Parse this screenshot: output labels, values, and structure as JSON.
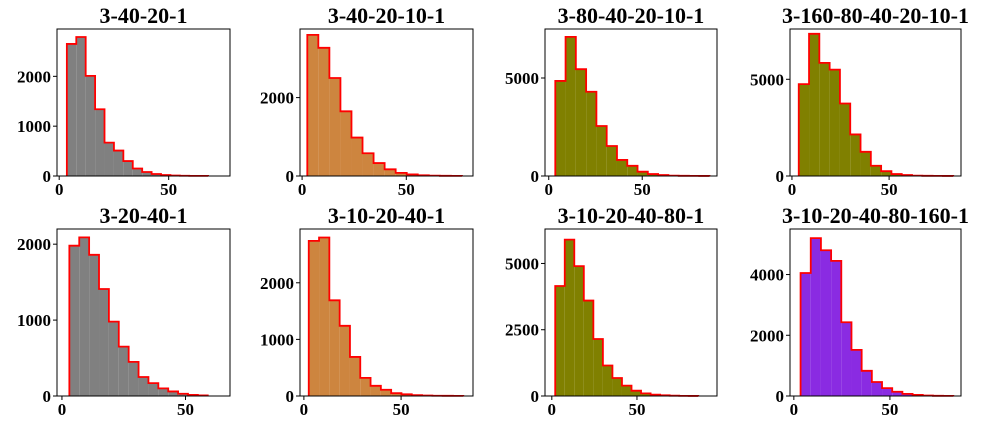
{
  "chart_data": [
    {
      "type": "bar",
      "title": "3-40-20-1",
      "fill": "#808080",
      "edge": "#ff0000",
      "x_start": 3.5,
      "bin_width": 4.3,
      "xlim": [
        -1,
        78
      ],
      "ylim": [
        0,
        2950
      ],
      "xticks": [
        0,
        50
      ],
      "yticks": [
        0,
        1000,
        2000
      ],
      "values": [
        2650,
        2790,
        2010,
        1340,
        670,
        510,
        300,
        150,
        80,
        40,
        20,
        10,
        5,
        3,
        2
      ]
    },
    {
      "type": "bar",
      "title": "3-40-20-10-1",
      "fill": "#cd853f",
      "edge": "#ff0000",
      "x_start": 2.5,
      "bin_width": 5.3,
      "xlim": [
        -1,
        82
      ],
      "ylim": [
        0,
        3750
      ],
      "xticks": [
        0,
        50
      ],
      "yticks": [
        0,
        2000
      ],
      "values": [
        3600,
        3270,
        2500,
        1650,
        980,
        580,
        330,
        170,
        80,
        40,
        20,
        10,
        5,
        3
      ]
    },
    {
      "type": "bar",
      "title": "3-80-40-20-10-1",
      "fill": "#808000",
      "edge": "#ff0000",
      "x_start": 3.5,
      "bin_width": 5.5,
      "xlim": [
        -2,
        90
      ],
      "ylim": [
        0,
        7500
      ],
      "xticks": [
        0,
        50
      ],
      "yticks": [
        0,
        5000
      ],
      "values": [
        4850,
        7100,
        5450,
        4300,
        2550,
        1530,
        820,
        520,
        220,
        100,
        50,
        20,
        10,
        5,
        3
      ]
    },
    {
      "type": "bar",
      "title": "3-160-80-40-20-10-1",
      "fill": "#808000",
      "edge": "#ff0000",
      "x_start": 3.5,
      "bin_width": 5.3,
      "xlim": [
        -1,
        87
      ],
      "ylim": [
        0,
        7600
      ],
      "xticks": [
        0,
        50
      ],
      "yticks": [
        0,
        5000
      ],
      "values": [
        4750,
        7350,
        5850,
        5500,
        3750,
        2150,
        1250,
        530,
        250,
        100,
        50,
        20,
        10,
        5,
        3
      ]
    },
    {
      "type": "bar",
      "title": "3-20-40-1",
      "fill": "#808080",
      "edge": "#ff0000",
      "x_start": 3,
      "bin_width": 4.0,
      "xlim": [
        -2,
        68
      ],
      "ylim": [
        0,
        2200
      ],
      "xticks": [
        0,
        50
      ],
      "yticks": [
        0,
        1000,
        2000
      ],
      "values": [
        1980,
        2090,
        1860,
        1410,
        980,
        650,
        450,
        250,
        170,
        100,
        60,
        30,
        15,
        8
      ]
    },
    {
      "type": "bar",
      "title": "3-10-20-40-1",
      "fill": "#cd853f",
      "edge": "#ff0000",
      "x_start": 2.5,
      "bin_width": 5.3,
      "xlim": [
        -2,
        87
      ],
      "ylim": [
        0,
        2950
      ],
      "xticks": [
        0,
        50
      ],
      "yticks": [
        0,
        1000,
        2000
      ],
      "values": [
        2740,
        2800,
        1690,
        1240,
        690,
        320,
        180,
        110,
        50,
        30,
        15,
        8,
        5,
        3,
        2
      ]
    },
    {
      "type": "bar",
      "title": "3-10-20-40-80-1",
      "fill": "#808000",
      "edge": "#ff0000",
      "x_start": 2,
      "bin_width": 5.6,
      "xlim": [
        -4,
        97
      ],
      "ylim": [
        0,
        6300
      ],
      "xticks": [
        0,
        50
      ],
      "yticks": [
        0,
        2500,
        5000
      ],
      "values": [
        4150,
        5900,
        4900,
        3600,
        2150,
        1150,
        680,
        390,
        200,
        100,
        50,
        25,
        12,
        6,
        3
      ]
    },
    {
      "type": "bar",
      "title": "3-10-20-40-80-160-1",
      "fill": "#8a2be2",
      "edge": "#ff0000",
      "x_start": 3.5,
      "bin_width": 5.3,
      "xlim": [
        -2,
        87
      ],
      "ylim": [
        0,
        5500
      ],
      "xticks": [
        0,
        50
      ],
      "yticks": [
        0,
        2000,
        4000
      ],
      "values": [
        4050,
        5200,
        4800,
        4450,
        2430,
        1520,
        830,
        460,
        260,
        140,
        70,
        35,
        15,
        6,
        3
      ]
    }
  ]
}
